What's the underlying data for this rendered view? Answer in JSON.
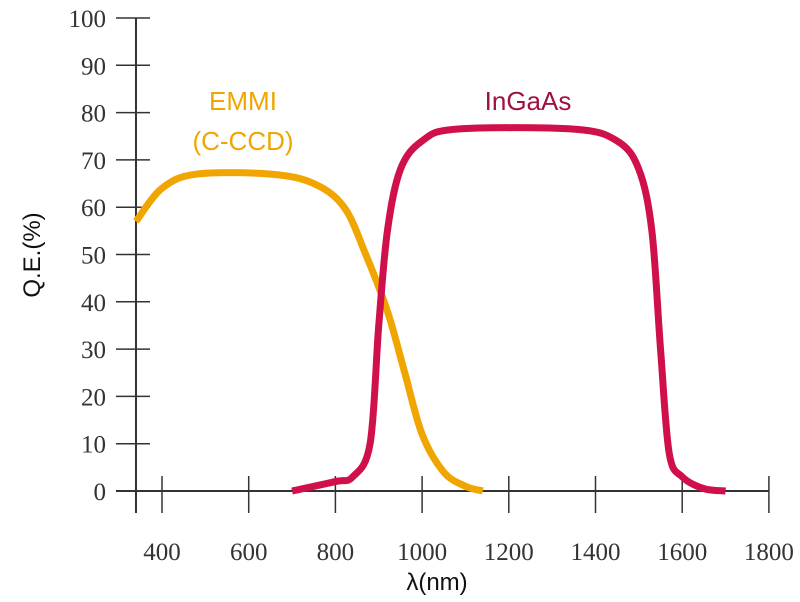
{
  "chart_data": {
    "type": "line",
    "title": "",
    "xlabel": "λ(nm)",
    "ylabel": "Q.E.(%)",
    "xlim": [
      340,
      1800
    ],
    "ylim": [
      0,
      100
    ],
    "xticks": [
      400,
      600,
      800,
      1000,
      1200,
      1400,
      1600,
      1800
    ],
    "yticks": [
      0,
      10,
      20,
      30,
      40,
      50,
      60,
      70,
      80,
      90,
      100
    ],
    "grid": false,
    "series": [
      {
        "name": "EMMI",
        "name_line2": "(C-CCD)",
        "color": "#f0a500",
        "x": [
          340,
          400,
          480,
          650,
          750,
          820,
          870,
          920,
          960,
          1000,
          1050,
          1100,
          1140
        ],
        "y": [
          57,
          64,
          67,
          67,
          65,
          60,
          50,
          38,
          25,
          12,
          4,
          1,
          0
        ]
      },
      {
        "name": "InGaAs",
        "color": "#d0104a",
        "x": [
          700,
          800,
          840,
          880,
          900,
          920,
          950,
          1000,
          1080,
          1350,
          1450,
          1500,
          1530,
          1550,
          1570,
          1600,
          1650,
          1700
        ],
        "y": [
          0,
          2,
          3,
          10,
          35,
          55,
          68,
          74,
          76.5,
          76.5,
          74,
          68,
          55,
          30,
          8,
          3,
          0.5,
          0
        ]
      }
    ]
  }
}
